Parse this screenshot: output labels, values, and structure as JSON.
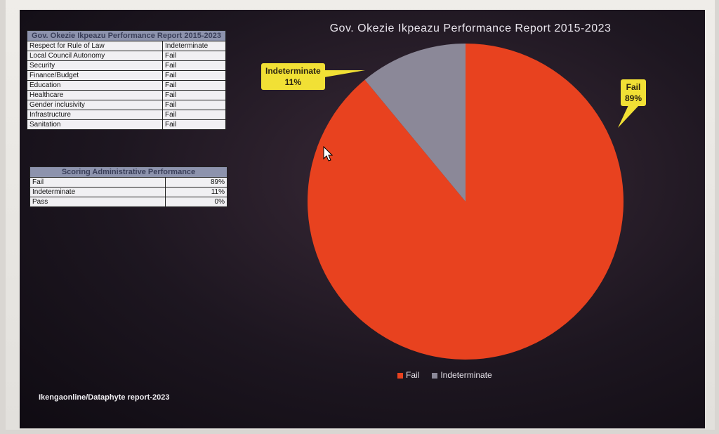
{
  "table1": {
    "title": "Gov. Okezie Ikpeazu Performance Report 2015-2023",
    "rows": [
      [
        "Respect for Rule of Law",
        "Indeterminate"
      ],
      [
        "Local Council Autonomy",
        "Fail"
      ],
      [
        "Security",
        "Fail"
      ],
      [
        "Finance/Budget",
        "Fail"
      ],
      [
        "Education",
        "Fail"
      ],
      [
        "Healthcare",
        "Fail"
      ],
      [
        "Gender inclusivity",
        "Fail"
      ],
      [
        "Infrastructure",
        "Fail"
      ],
      [
        "Sanitation",
        "Fail"
      ]
    ]
  },
  "table2": {
    "title": "Scoring Administrative Performance",
    "rows": [
      [
        "Fail",
        "89%"
      ],
      [
        "Indeterminate",
        "11%"
      ],
      [
        "Pass",
        "0%"
      ]
    ]
  },
  "chart_data": {
    "type": "pie",
    "title": "Gov. Okezie Ikpeazu Performance Report 2015-2023",
    "categories": [
      "Fail",
      "Indeterminate"
    ],
    "values": [
      89,
      11
    ],
    "colors": [
      "#e8421f",
      "#8b8898"
    ],
    "data_labels": [
      [
        "Fail",
        "89%"
      ],
      [
        "Indeterminate",
        "11%"
      ]
    ],
    "legend": "bottom",
    "label_color": "#f1e035"
  },
  "footer": "Ikengaonline/Dataphyte report-2023"
}
